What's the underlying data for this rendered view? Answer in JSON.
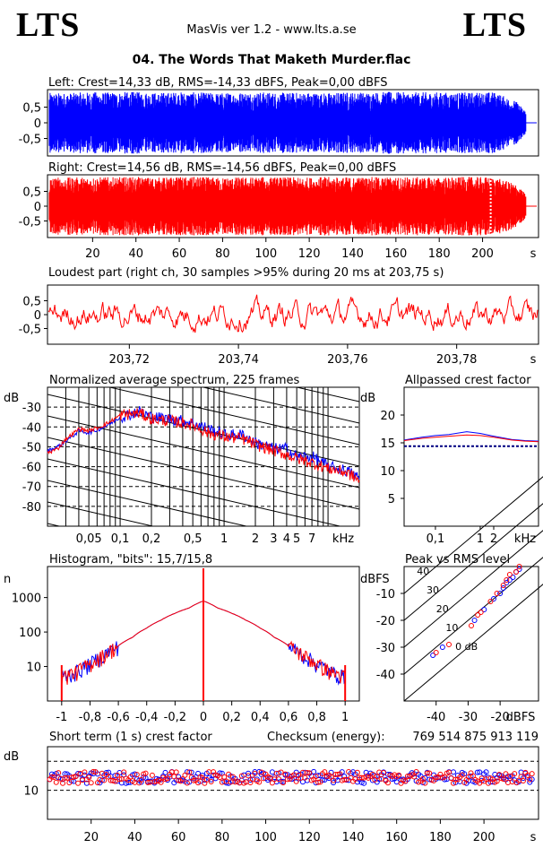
{
  "header": {
    "logo_left": "LTS",
    "logo_right": "LTS",
    "app_line": "MasVis ver 1.2 - www.lts.a.se",
    "track_title": "04. The Words That Maketh Murder.flac",
    "checksum_label": "Checksum (energy):",
    "checksum_value": "769 514 875 913 119"
  },
  "colors": {
    "left": "#0000ff",
    "right": "#ff0000"
  },
  "chart_data": [
    {
      "id": "left-waveform",
      "type": "area",
      "title": "Left: Crest=14,33 dB, RMS=-14,33 dBFS, Peak=0,00 dBFS",
      "yticks": [
        "0,5",
        "0",
        "-0,5"
      ],
      "ylim": [
        -1,
        1
      ],
      "xlim": [
        0,
        225
      ],
      "series": [
        {
          "values": [
            0.95,
            0.95,
            0.98,
            0.97,
            0.99,
            0.96,
            0.98,
            0.97,
            0.95,
            0.97,
            0.98,
            0.96,
            0.97,
            0.95,
            0.98,
            0.97,
            0.99,
            0.97,
            0.98,
            0.96,
            0.97,
            0.98,
            0.7,
            0.05
          ]
        }
      ]
    },
    {
      "id": "right-waveform",
      "type": "area",
      "title": "Right: Crest=14,56 dB, RMS=-14,56 dBFS, Peak=0,00 dBFS",
      "yticks": [
        "0,5",
        "0",
        "-0,5"
      ],
      "ylim": [
        -1,
        1
      ],
      "xlim": [
        0,
        225
      ],
      "xticks": [
        "20",
        "40",
        "60",
        "80",
        "100",
        "120",
        "140",
        "160",
        "180",
        "200"
      ],
      "xunit": "s",
      "marker_x": 203.75,
      "series": [
        {
          "values": [
            0.98,
            0.97,
            0.99,
            0.98,
            0.99,
            0.97,
            0.98,
            0.99,
            0.97,
            0.98,
            0.99,
            0.98,
            0.97,
            0.99,
            0.98,
            0.99,
            0.98,
            0.99,
            0.97,
            0.98,
            0.99,
            0.98,
            0.75,
            0.05
          ]
        }
      ]
    },
    {
      "id": "loudest-part",
      "type": "line",
      "title": "Loudest part (right ch, 30 samples >95% during 20 ms at 203,75 s)",
      "yticks": [
        "0,5",
        "0",
        "-0,5"
      ],
      "ylim": [
        -1,
        1
      ],
      "xlim": [
        203.705,
        203.795
      ],
      "xticks": [
        "203,72",
        "203,74",
        "203,76",
        "203,78"
      ],
      "xunit": "s"
    },
    {
      "id": "average-spectrum",
      "type": "line",
      "title": "Normalized average spectrum, 225 frames",
      "ylabel": "dB",
      "yticks": [
        "-30",
        "-40",
        "-50",
        "-60",
        "-70",
        "-80"
      ],
      "ylim": [
        -90,
        -20
      ],
      "xticks": [
        "0,05",
        "0,1",
        "0,2",
        "0,5",
        "1",
        "2",
        "3",
        "4",
        "5",
        "7"
      ],
      "xunit": "kHz",
      "xscale": "log",
      "xlim": [
        0.02,
        20
      ],
      "x": [
        0.02,
        0.025,
        0.03,
        0.04,
        0.05,
        0.07,
        0.1,
        0.15,
        0.2,
        0.3,
        0.5,
        0.7,
        1,
        1.5,
        2,
        3,
        4,
        5,
        7,
        10,
        15,
        20
      ],
      "series": [
        {
          "name": "Left",
          "values": [
            -52,
            -50,
            -47,
            -42,
            -43,
            -40,
            -35,
            -32,
            -35,
            -36,
            -38,
            -41,
            -44,
            -44,
            -48,
            -51,
            -51,
            -55,
            -55,
            -60,
            -62,
            -66
          ]
        },
        {
          "name": "Right",
          "values": [
            -53,
            -51,
            -46,
            -41,
            -42,
            -39,
            -34,
            -33,
            -36,
            -37,
            -39,
            -43,
            -45,
            -46,
            -49,
            -52,
            -54,
            -56,
            -58,
            -61,
            -63,
            -67
          ]
        }
      ]
    },
    {
      "id": "allpassed-crest",
      "type": "line",
      "title": "Allpassed crest factor",
      "ylabel": "dB",
      "yticks": [
        "20",
        "15",
        "10",
        "5"
      ],
      "ylim": [
        0,
        25
      ],
      "xticks": [
        "0,1",
        "1",
        "2"
      ],
      "xunit": "kHz",
      "xscale": "log",
      "xlim": [
        0.02,
        20
      ],
      "reference_line": 14.4,
      "x": [
        0.02,
        0.05,
        0.1,
        0.2,
        0.5,
        1,
        2,
        5,
        10,
        20
      ],
      "series": [
        {
          "name": "Left",
          "values": [
            15.5,
            16,
            16.3,
            16.5,
            17,
            16.7,
            16.2,
            15.6,
            15.4,
            15.3
          ]
        },
        {
          "name": "Right",
          "values": [
            15.4,
            15.8,
            16.0,
            16.2,
            16.4,
            16.3,
            16.0,
            15.5,
            15.3,
            15.2
          ]
        }
      ]
    },
    {
      "id": "histogram",
      "type": "line",
      "title": "Histogram, \"bits\": 15,7/15,8",
      "ylabel": "n",
      "yticks": [
        "1000",
        "100",
        "10"
      ],
      "yscale": "log",
      "xlim": [
        -1.1,
        1.1
      ],
      "xticks": [
        "-1",
        "-0,8",
        "-0,6",
        "-0,4",
        "-0,2",
        "0",
        "0,2",
        "0,4",
        "0,6",
        "0,8",
        "1"
      ],
      "x": [
        -1.0,
        -0.9,
        -0.8,
        -0.7,
        -0.6,
        -0.5,
        -0.4,
        -0.3,
        -0.2,
        -0.1,
        0,
        0.1,
        0.2,
        0.3,
        0.4,
        0.5,
        0.6,
        0.7,
        0.8,
        0.9,
        1.0
      ],
      "series": [
        {
          "name": "Left",
          "values": [
            5,
            7,
            12,
            22,
            40,
            70,
            130,
            220,
            350,
            500,
            800,
            500,
            350,
            220,
            130,
            70,
            40,
            22,
            12,
            7,
            5
          ]
        },
        {
          "name": "Right",
          "values": [
            5,
            7,
            12,
            22,
            40,
            70,
            130,
            220,
            350,
            500,
            800,
            500,
            350,
            220,
            130,
            70,
            40,
            22,
            12,
            7,
            5
          ]
        }
      ]
    },
    {
      "id": "peak-vs-rms",
      "type": "scatter",
      "title": "Peak vs RMS level",
      "ylabel": "dBFS",
      "xlabel": "dBFS",
      "yticks": [
        "-10",
        "-20",
        "-30",
        "-40"
      ],
      "xticks": [
        "-40",
        "-30",
        "-20"
      ],
      "ylim": [
        -50,
        0
      ],
      "xlim": [
        -50,
        -8
      ],
      "crest_lines": [
        "40",
        "30",
        "20",
        "10",
        "0 dB"
      ],
      "series": [
        {
          "name": "Left",
          "points": [
            [
              -41,
              -33
            ],
            [
              -38,
              -30
            ],
            [
              -28,
              -20
            ],
            [
              -25,
              -16
            ],
            [
              -22,
              -12
            ],
            [
              -20,
              -10
            ],
            [
              -19,
              -8
            ],
            [
              -18,
              -6
            ],
            [
              -17,
              -5
            ],
            [
              -16,
              -4
            ],
            [
              -15,
              -2
            ],
            [
              -14,
              -1
            ]
          ]
        },
        {
          "name": "Right",
          "points": [
            [
              -40,
              -32
            ],
            [
              -36,
              -29
            ],
            [
              -29,
              -22
            ],
            [
              -27,
              -18
            ],
            [
              -26,
              -17
            ],
            [
              -23,
              -13
            ],
            [
              -21,
              -10
            ],
            [
              -19,
              -7
            ],
            [
              -18,
              -5
            ],
            [
              -17,
              -3
            ],
            [
              -15,
              -2
            ],
            [
              -14,
              0
            ]
          ]
        }
      ]
    },
    {
      "id": "short-term-crest",
      "type": "scatter",
      "title": "Short term (1 s) crest factor",
      "ylabel": "dB",
      "yticks": [
        "10"
      ],
      "ylim": [
        0,
        25
      ],
      "xlim": [
        0,
        225
      ],
      "xticks": [
        "20",
        "40",
        "60",
        "80",
        "100",
        "120",
        "140",
        "160",
        "180",
        "200"
      ],
      "xunit": "s",
      "reference_lines": [
        10,
        20
      ],
      "mean_crest_db": 14.4
    }
  ]
}
